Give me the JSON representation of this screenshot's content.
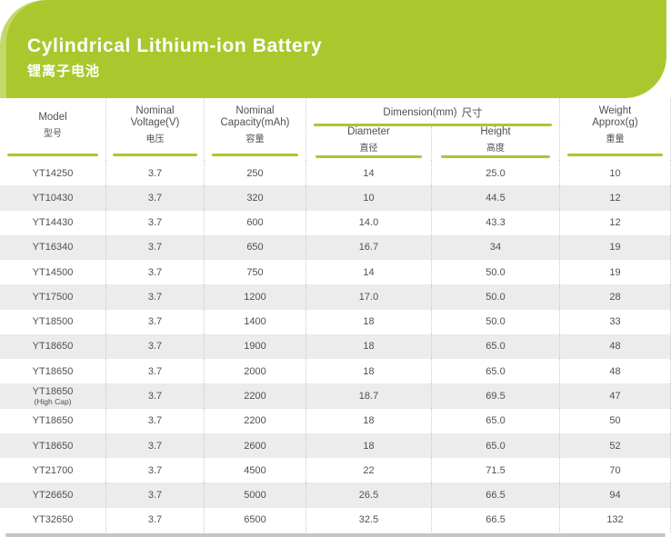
{
  "banner": {
    "title": "Cylindrical Lithium-ion Battery",
    "subtitle": "锂离子电池"
  },
  "colors": {
    "green": "#aac82d",
    "green_light": "#c5d869",
    "stripe": "#ececec",
    "text": "#4f5052",
    "bottom_bar": "#c5c5c5",
    "dotted_divider": "#c9c9c9"
  },
  "table": {
    "columns": {
      "model": {
        "en": "Model",
        "zh": "型号"
      },
      "voltage": {
        "en": "Nominal Voltage(V)",
        "zh": "电压"
      },
      "capacity": {
        "en": "Nominal Capacity(mAh)",
        "zh": "容量"
      },
      "dimension": {
        "en": "Dimension(mm)",
        "zh": "尺寸"
      },
      "diameter": {
        "en": "Diameter",
        "zh": "直径"
      },
      "height": {
        "en": "Height",
        "zh": "高度"
      },
      "weight": {
        "en": "Weight Approx(g)",
        "zh": "重量"
      }
    },
    "rows": [
      {
        "model": "YT14250",
        "note": "",
        "voltage": "3.7",
        "capacity": "250",
        "diameter": "14",
        "height": "25.0",
        "weight": "10"
      },
      {
        "model": "YT10430",
        "note": "",
        "voltage": "3.7",
        "capacity": "320",
        "diameter": "10",
        "height": "44.5",
        "weight": "12"
      },
      {
        "model": "YT14430",
        "note": "",
        "voltage": "3.7",
        "capacity": "600",
        "diameter": "14.0",
        "height": "43.3",
        "weight": "12"
      },
      {
        "model": "YT16340",
        "note": "",
        "voltage": "3.7",
        "capacity": "650",
        "diameter": "16.7",
        "height": "34",
        "weight": "19"
      },
      {
        "model": "YT14500",
        "note": "",
        "voltage": "3.7",
        "capacity": "750",
        "diameter": "14",
        "height": "50.0",
        "weight": "19"
      },
      {
        "model": "YT17500",
        "note": "",
        "voltage": "3.7",
        "capacity": "1200",
        "diameter": "17.0",
        "height": "50.0",
        "weight": "28"
      },
      {
        "model": "YT18500",
        "note": "",
        "voltage": "3.7",
        "capacity": "1400",
        "diameter": "18",
        "height": "50.0",
        "weight": "33"
      },
      {
        "model": "YT18650",
        "note": "",
        "voltage": "3.7",
        "capacity": "1900",
        "diameter": "18",
        "height": "65.0",
        "weight": "48"
      },
      {
        "model": "YT18650",
        "note": "",
        "voltage": "3.7",
        "capacity": "2000",
        "diameter": "18",
        "height": "65.0",
        "weight": "48"
      },
      {
        "model": "YT18650",
        "note": "(High Cap)",
        "voltage": "3.7",
        "capacity": "2200",
        "diameter": "18.7",
        "height": "69.5",
        "weight": "47"
      },
      {
        "model": "YT18650",
        "note": "",
        "voltage": "3.7",
        "capacity": "2200",
        "diameter": "18",
        "height": "65.0",
        "weight": "50"
      },
      {
        "model": "YT18650",
        "note": "",
        "voltage": "3.7",
        "capacity": "2600",
        "diameter": "18",
        "height": "65.0",
        "weight": "52"
      },
      {
        "model": "YT21700",
        "note": "",
        "voltage": "3.7",
        "capacity": "4500",
        "diameter": "22",
        "height": "71.5",
        "weight": "70"
      },
      {
        "model": "YT26650",
        "note": "",
        "voltage": "3.7",
        "capacity": "5000",
        "diameter": "26.5",
        "height": "66.5",
        "weight": "94"
      },
      {
        "model": "YT32650",
        "note": "",
        "voltage": "3.7",
        "capacity": "6500",
        "diameter": "32.5",
        "height": "66.5",
        "weight": "132"
      }
    ]
  }
}
